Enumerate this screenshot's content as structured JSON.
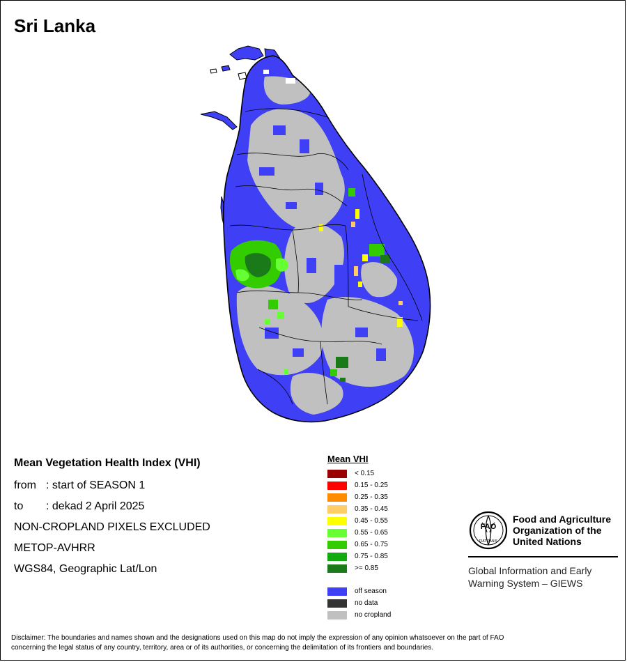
{
  "map": {
    "title": "Sri Lanka",
    "legend_title": "Mean VHI",
    "legend_classes": [
      {
        "label": "< 0.15",
        "color": "#9a0000"
      },
      {
        "label": "0.15 - 0.25",
        "color": "#ff0000"
      },
      {
        "label": "0.25 - 0.35",
        "color": "#ff8c00"
      },
      {
        "label": "0.35 - 0.45",
        "color": "#ffcc66"
      },
      {
        "label": "0.45 - 0.55",
        "color": "#ffff00"
      },
      {
        "label": "0.55 - 0.65",
        "color": "#66ff33"
      },
      {
        "label": "0.65 - 0.75",
        "color": "#33cc00"
      },
      {
        "label": "0.75 - 0.85",
        "color": "#11aa11"
      },
      {
        "label": ">= 0.85",
        "color": "#1a7a1a"
      }
    ],
    "status_classes": [
      {
        "label": "off season",
        "color": "#3f3ff5"
      },
      {
        "label": "no data",
        "color": "#333333"
      },
      {
        "label": "no cropland",
        "color": "#c0c0c0"
      }
    ]
  },
  "info": {
    "heading": "Mean Vegetation Health Index (VHI)",
    "from_label": "from",
    "from_value": ": start of SEASON 1",
    "to_label": "to",
    "to_value": ": dekad 2 April 2025",
    "exclusion": "NON-CROPLAND PIXELS EXCLUDED",
    "sensor": "METOP-AVHRR",
    "projection": "WGS84, Geographic Lat/Lon"
  },
  "fao": {
    "logo_text": "FAO",
    "logo_motto": "FIAT PANIS",
    "name_line1": "Food and Agriculture",
    "name_line2": "Organization of the",
    "name_line3": "United Nations",
    "program_line1": "Global Information and Early",
    "program_line2": "Warning System – GIEWS"
  },
  "disclaimer": {
    "line1": "Disclaimer: The boundaries and names shown and the designations used on this map do not imply the expression of any opinion whatsoever on the part of FAO",
    "line2": "concerning the legal status of any country, territory, area or of its authorities, or concerning the delimitation of its frontiers and boundaries."
  }
}
